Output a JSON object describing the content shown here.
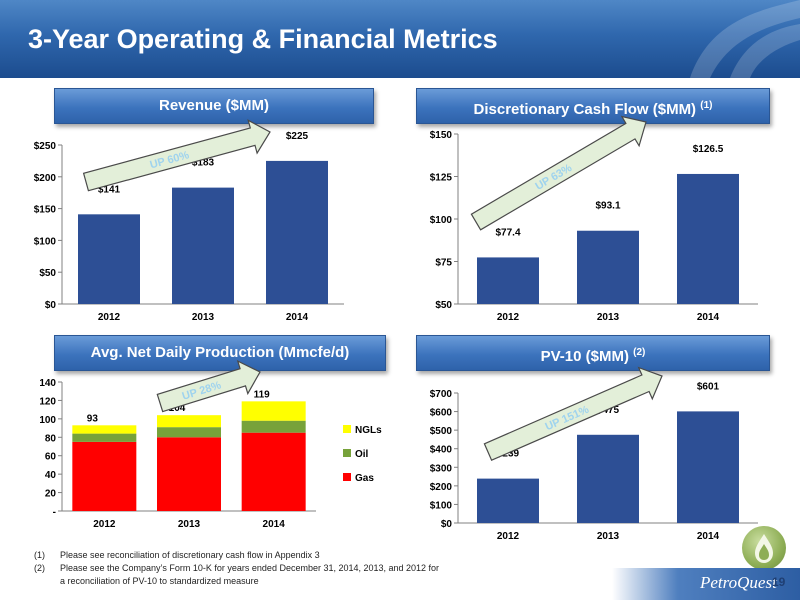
{
  "title": "3-Year Operating & Financial Metrics",
  "sections": {
    "revenue": {
      "label": "Revenue ($MM)"
    },
    "dcf": {
      "label": "Discretionary Cash Flow ($MM)",
      "note": "(1)"
    },
    "production": {
      "label": "Avg. Net Daily Production (Mmcfe/d)"
    },
    "pv10": {
      "label": "PV-10 ($MM)",
      "note": "(2)"
    }
  },
  "colors": {
    "bar": "#2d4f95",
    "gas": "#ff0000",
    "oil": "#77a23a",
    "ngls": "#ffff00",
    "arrow_fill": "#e3efd9",
    "arrow_text": "#9fd3ee"
  },
  "icons": {
    "logo": "flame-droplet-icon"
  },
  "chart_data": [
    {
      "id": "revenue",
      "type": "bar",
      "categories": [
        "2012",
        "2013",
        "2014"
      ],
      "values": [
        141,
        183,
        225
      ],
      "value_labels": [
        "$141",
        "$183",
        "$225"
      ],
      "ylim": [
        0,
        250
      ],
      "yticks": [
        0,
        50,
        100,
        150,
        200,
        250
      ],
      "ytick_labels": [
        "$0",
        "$50",
        "$100",
        "$150",
        "$200",
        "$250"
      ],
      "annotation": "UP 60%",
      "grid": false
    },
    {
      "id": "dcf",
      "type": "bar",
      "categories": [
        "2012",
        "2013",
        "2014"
      ],
      "values": [
        77.4,
        93.1,
        126.5
      ],
      "value_labels": [
        "$77.4",
        "$93.1",
        "$126.5"
      ],
      "ylim": [
        50,
        150
      ],
      "yticks": [
        50,
        75,
        100,
        125,
        150
      ],
      "ytick_labels": [
        "$50",
        "$75",
        "$100",
        "$125",
        "$150"
      ],
      "annotation": "UP 63%",
      "grid": false
    },
    {
      "id": "production",
      "type": "bar",
      "stacked": true,
      "categories": [
        "2012",
        "2013",
        "2014"
      ],
      "series": [
        {
          "name": "Gas",
          "values": [
            75,
            80,
            85
          ]
        },
        {
          "name": "Oil",
          "values": [
            9,
            11,
            13
          ]
        },
        {
          "name": "NGLs",
          "values": [
            9,
            13,
            21
          ]
        }
      ],
      "totals": [
        "93",
        "104",
        "119"
      ],
      "ylim": [
        0,
        140
      ],
      "yticks": [
        0,
        20,
        40,
        60,
        80,
        100,
        120,
        140
      ],
      "ytick_labels": [
        "-",
        "20",
        "40",
        "60",
        "80",
        "100",
        "120",
        "140"
      ],
      "legend": [
        "NGLs",
        "Oil",
        "Gas"
      ],
      "legend_position": "right",
      "annotation": "UP 28%",
      "grid": false
    },
    {
      "id": "pv10",
      "type": "bar",
      "categories": [
        "2012",
        "2013",
        "2014"
      ],
      "values": [
        239,
        475,
        601
      ],
      "value_labels": [
        "$239",
        "$475",
        "$601"
      ],
      "ylim": [
        0,
        700
      ],
      "yticks": [
        0,
        100,
        200,
        300,
        400,
        500,
        600,
        700
      ],
      "ytick_labels": [
        "$0",
        "$100",
        "$200",
        "$300",
        "$400",
        "$500",
        "$600",
        "$700"
      ],
      "annotation": "UP 151%",
      "grid": false
    }
  ],
  "footnotes": {
    "f1_num": "(1)",
    "f1_text": "Please see reconciliation of discretionary cash flow in Appendix 3",
    "f2_num": "(2)",
    "f2_text": "Please see the Company’s Form 10-K for years ended December 31, 2014, 2013, and 2012 for",
    "f2_cont": "a reconciliation of PV-10 to standardized measure"
  },
  "brand": "PetroQuest",
  "page_number": "19"
}
